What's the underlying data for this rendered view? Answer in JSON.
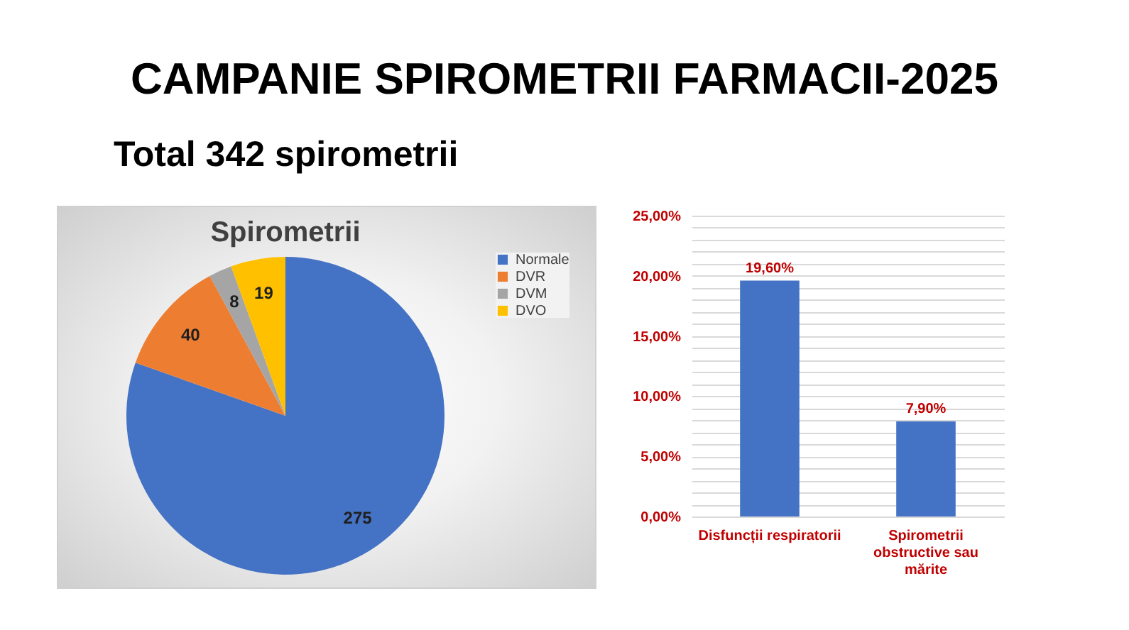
{
  "chart_data": [
    {
      "type": "other",
      "title": "CAMPANIE SPIROMETRII FARMACII-2025",
      "subtitle": "Total 342 spirometrii"
    },
    {
      "type": "pie",
      "title": "Spirometrii",
      "categories": [
        "Normale",
        "DVR",
        "DVM",
        "DVO"
      ],
      "values": [
        275,
        40,
        8,
        19
      ],
      "colors": [
        "#4472c4",
        "#ed7d31",
        "#a5a5a5",
        "#ffc000"
      ],
      "data_labels": true,
      "legend": "right"
    },
    {
      "type": "bar",
      "categories": [
        "Disfuncții respiratorii",
        "Spirometrii obstructive sau mărite"
      ],
      "values": [
        19.6,
        7.9
      ],
      "color": "#4472c4",
      "value_labels": [
        "19,60%",
        "7,90%"
      ],
      "ylim": [
        0,
        25
      ],
      "yticks": [
        {
          "value": 0,
          "label": "0,00%"
        },
        {
          "value": 1,
          "label": null
        },
        {
          "value": 2,
          "label": null
        },
        {
          "value": 3,
          "label": null
        },
        {
          "value": 4,
          "label": null
        },
        {
          "value": 5,
          "label": "5,00%"
        },
        {
          "value": 6,
          "label": null
        },
        {
          "value": 7,
          "label": null
        },
        {
          "value": 8,
          "label": null
        },
        {
          "value": 9,
          "label": null
        },
        {
          "value": 10,
          "label": "10,00%"
        },
        {
          "value": 11,
          "label": null
        },
        {
          "value": 12,
          "label": null
        },
        {
          "value": 13,
          "label": null
        },
        {
          "value": 14,
          "label": null
        },
        {
          "value": 15,
          "label": "15,00%"
        },
        {
          "value": 16,
          "label": null
        },
        {
          "value": 17,
          "label": null
        },
        {
          "value": 18,
          "label": null
        },
        {
          "value": 19,
          "label": null
        },
        {
          "value": 20,
          "label": "20,00%"
        },
        {
          "value": 21,
          "label": null
        },
        {
          "value": 22,
          "label": null
        },
        {
          "value": 23,
          "label": null
        },
        {
          "value": 24,
          "label": null
        },
        {
          "value": 25,
          "label": "25,00%"
        }
      ],
      "grid": "y"
    }
  ]
}
